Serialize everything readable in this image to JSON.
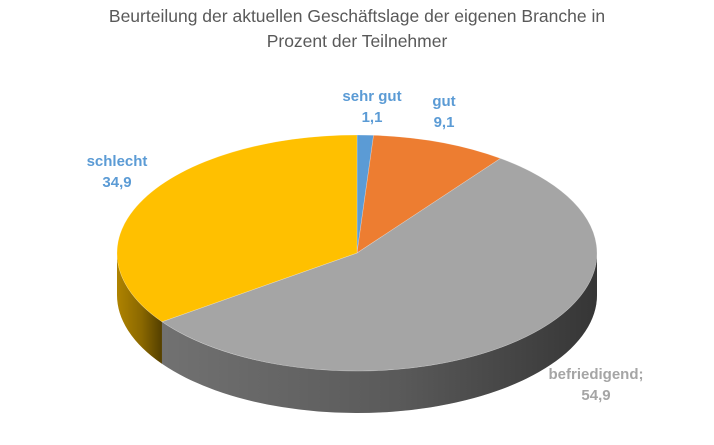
{
  "chart_data": {
    "type": "pie",
    "style": "3d",
    "title_line1": "Beurteilung der aktuellen Geschäftslage der eigenen Branche in",
    "title_line2": "Prozent der Teilnehmer",
    "slices": [
      {
        "label": "sehr gut",
        "value": 1.1,
        "value_text": "1,1",
        "color": "#5B9BD5",
        "label_color": "#5B9BD5"
      },
      {
        "label": "gut",
        "value": 9.1,
        "value_text": "9,1",
        "color": "#ED7D31",
        "label_color": "#5B9BD5"
      },
      {
        "label": "befriedigend;",
        "value": 54.9,
        "value_text": "54,9",
        "color": "#A5A5A5",
        "label_color": "#A5A5A5"
      },
      {
        "label": "schlecht",
        "value": 34.9,
        "value_text": "34,9",
        "color": "#FFC000",
        "label_color": "#5B9BD5"
      }
    ],
    "start_angle_deg": 0,
    "direction": "clockwise",
    "legend": "none"
  }
}
